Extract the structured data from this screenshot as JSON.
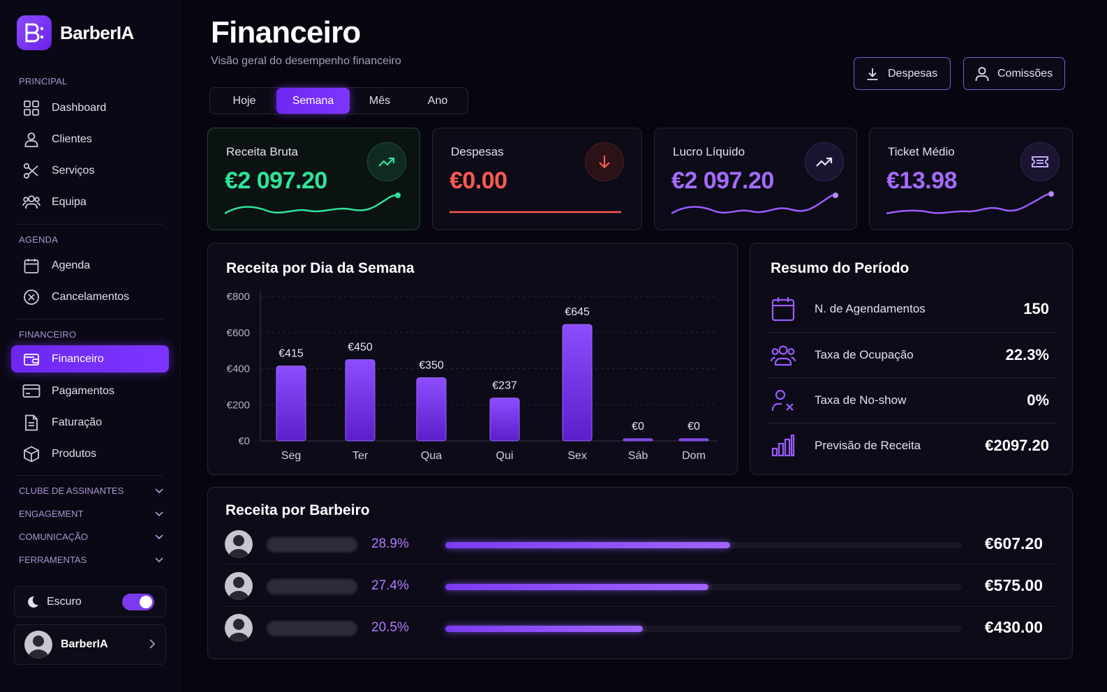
{
  "brand": {
    "name": "BarberIA"
  },
  "colors": {
    "accent": "#7c3aed",
    "green": "#2ee59a",
    "red": "#ff5a4f",
    "purple": "#a56bff"
  },
  "sidebar": {
    "sections": [
      {
        "label": "PRINCIPAL"
      },
      {
        "label": "AGENDA"
      },
      {
        "label": "FINANCEIRO"
      }
    ],
    "items": [
      {
        "label": "Dashboard",
        "icon": "grid-icon"
      },
      {
        "label": "Clientes",
        "icon": "user-icon"
      },
      {
        "label": "Serviços",
        "icon": "scissors-icon"
      },
      {
        "label": "Equipa",
        "icon": "team-icon"
      },
      {
        "label": "Agenda",
        "icon": "calendar-icon"
      },
      {
        "label": "Cancelamentos",
        "icon": "cancel-icon"
      },
      {
        "label": "Financeiro",
        "icon": "wallet-icon",
        "active": true
      },
      {
        "label": "Pagamentos",
        "icon": "card-icon"
      },
      {
        "label": "Faturação",
        "icon": "invoice-icon"
      },
      {
        "label": "Produtos",
        "icon": "box-icon"
      }
    ],
    "collapsibles": [
      {
        "label": "CLUBE DE ASSINANTES"
      },
      {
        "label": "ENGAGEMENT"
      },
      {
        "label": "COMUNICAÇÃO"
      },
      {
        "label": "FERRAMENTAS"
      }
    ],
    "theme": {
      "label": "Escuro",
      "enabled": true
    },
    "user": {
      "name": "BarberIA"
    }
  },
  "header": {
    "title": "Financeiro",
    "subtitle": "Visão geral do desempenho financeiro",
    "periods": [
      {
        "label": "Hoje"
      },
      {
        "label": "Semana",
        "active": true
      },
      {
        "label": "Mês"
      },
      {
        "label": "Ano"
      }
    ],
    "buttons": {
      "expenses": "Despesas",
      "commissions": "Comissões"
    }
  },
  "kpis": [
    {
      "label": "Receita Bruta",
      "value": "€2 097.20",
      "trend": "up"
    },
    {
      "label": "Despesas",
      "value": "€0.00",
      "trend": "down"
    },
    {
      "label": "Lucro Líquido",
      "value": "€2 097.20",
      "trend": "up"
    },
    {
      "label": "Ticket Médio",
      "value": "€13.98",
      "trend": "ticket"
    }
  ],
  "chart_data": {
    "type": "bar",
    "title": "Receita por Dia da Semana",
    "categories": [
      "Seg",
      "Ter",
      "Qua",
      "Qui",
      "Sex",
      "Sáb",
      "Dom"
    ],
    "values": [
      415,
      450,
      350,
      237,
      645,
      0,
      0
    ],
    "value_labels": [
      "€415",
      "€450",
      "€350",
      "€237",
      "€645",
      "€0",
      "€0"
    ],
    "ylim": [
      0,
      800
    ],
    "yticks": [
      "€0",
      "€200",
      "€400",
      "€600",
      "€800"
    ],
    "grid": true
  },
  "summary": {
    "title": "Resumo do Período",
    "rows": [
      {
        "label": "N. de Agendamentos",
        "value": "150",
        "icon": "calendar-icon"
      },
      {
        "label": "Taxa de Ocupação",
        "value": "22.3%",
        "icon": "team-icon"
      },
      {
        "label": "Taxa de No-show",
        "value": "0%",
        "icon": "user-x-icon"
      },
      {
        "label": "Previsão de Receita",
        "value": "€2097.20",
        "icon": "bar-chart-icon"
      }
    ]
  },
  "barbers": {
    "title": "Receita por Barbeiro",
    "rows": [
      {
        "pct": "28.9%",
        "share": 0.552,
        "amount": "€607.20"
      },
      {
        "pct": "27.4%",
        "share": 0.51,
        "amount": "€575.00"
      },
      {
        "pct": "20.5%",
        "share": 0.382,
        "amount": "€430.00"
      }
    ]
  }
}
